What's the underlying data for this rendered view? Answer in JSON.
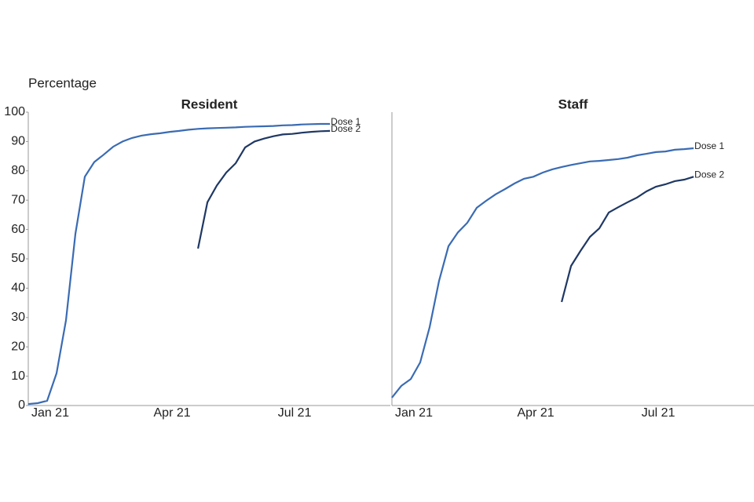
{
  "chart_data": [
    {
      "type": "line",
      "title": "Resident",
      "y_label": "Percentage",
      "x": [
        0,
        1,
        2,
        3,
        4,
        5,
        6,
        7,
        8,
        9,
        10,
        11,
        12,
        13,
        14,
        15,
        16,
        17,
        18,
        19,
        20,
        21,
        22,
        23,
        24,
        25,
        26,
        27,
        28,
        29,
        30,
        31,
        32
      ],
      "xlim": [
        0,
        38.4
      ],
      "xticks": [
        {
          "value": 2.33,
          "label": "Jan 21"
        },
        {
          "value": 15.25,
          "label": "Apr 21"
        },
        {
          "value": 28.25,
          "label": "Jul 21"
        }
      ],
      "ylim": [
        0,
        100
      ],
      "yticks": [
        0,
        10,
        20,
        30,
        40,
        50,
        60,
        70,
        80,
        90,
        100
      ],
      "series": [
        {
          "name": "Dose 1",
          "color": "#3a6bb3",
          "values": [
            0.5,
            0.8,
            1.6,
            11,
            29,
            58.5,
            78,
            83,
            85.5,
            88.2,
            90,
            91.2,
            92,
            92.5,
            92.8,
            93.3,
            93.6,
            94,
            94.3,
            94.5,
            94.6,
            94.7,
            94.8,
            95,
            95.1,
            95.2,
            95.3,
            95.5,
            95.6,
            95.8,
            95.9,
            96,
            96
          ]
        },
        {
          "name": "Dose 2",
          "color": "#1f3864",
          "values": [
            null,
            null,
            null,
            null,
            null,
            null,
            null,
            null,
            null,
            null,
            null,
            null,
            null,
            null,
            null,
            null,
            null,
            null,
            53.5,
            69.3,
            75,
            79.4,
            82.6,
            88,
            90,
            91,
            91.8,
            92.4,
            92.6,
            93,
            93.3,
            93.5,
            93.6
          ]
        }
      ]
    },
    {
      "type": "line",
      "title": "Staff",
      "x": [
        0,
        1,
        2,
        3,
        4,
        5,
        6,
        7,
        8,
        9,
        10,
        11,
        12,
        13,
        14,
        15,
        16,
        17,
        18,
        19,
        20,
        21,
        22,
        23,
        24,
        25,
        26,
        27,
        28,
        29,
        30,
        31,
        32
      ],
      "xlim": [
        0,
        38.4
      ],
      "xticks": [
        {
          "value": 2.33,
          "label": "Jan 21"
        },
        {
          "value": 15.25,
          "label": "Apr 21"
        },
        {
          "value": 28.25,
          "label": "Jul 21"
        }
      ],
      "ylim": [
        0,
        100
      ],
      "series": [
        {
          "name": "Dose 1",
          "color": "#3a6bb3",
          "values": [
            2.7,
            6.7,
            9,
            14.7,
            26.7,
            42.5,
            54.3,
            59,
            62.3,
            67.4,
            69.8,
            72,
            73.8,
            75.7,
            77.3,
            78,
            79.4,
            80.5,
            81.3,
            82,
            82.6,
            83.2,
            83.4,
            83.7,
            84,
            84.5,
            85.3,
            85.8,
            86.4,
            86.6,
            87.2,
            87.4,
            87.7
          ]
        },
        {
          "name": "Dose 2",
          "color": "#1f3864",
          "values": [
            null,
            null,
            null,
            null,
            null,
            null,
            null,
            null,
            null,
            null,
            null,
            null,
            null,
            null,
            null,
            null,
            null,
            null,
            35.3,
            47.6,
            52.7,
            57.5,
            60.4,
            65.8,
            67.6,
            69.3,
            70.9,
            73,
            74.6,
            75.4,
            76.5,
            77,
            78
          ]
        }
      ]
    }
  ]
}
